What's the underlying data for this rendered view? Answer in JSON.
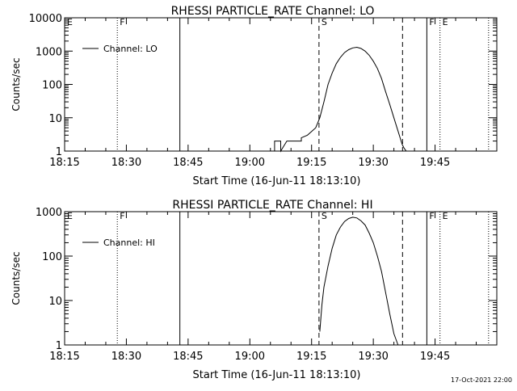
{
  "chart_data": [
    {
      "type": "line",
      "title": "RHESSI PARTICLE_RATE Channel: LO",
      "xlabel": "Start Time (16-Jun-11 18:13:10)",
      "ylabel": "Counts/sec",
      "yscale": "log",
      "xlim": [
        0,
        105
      ],
      "ylim": [
        1,
        10000
      ],
      "x_tick_labels": [
        "18:15",
        "18:30",
        "18:45",
        "19:00",
        "19:15",
        "19:30",
        "19:45"
      ],
      "x_tick_minutes": [
        0,
        15,
        30,
        45,
        60,
        75,
        90
      ],
      "y_tick_labels": [
        "1",
        "10",
        "100",
        "1000",
        "10000"
      ],
      "y_tick_values": [
        1,
        10,
        100,
        1000,
        10000
      ],
      "legend": {
        "label": "Channel: LO",
        "placement": "top-left"
      },
      "markers": [
        {
          "minute": 0,
          "style": "none",
          "label": "E"
        },
        {
          "minute": 12.8,
          "style": "dotted",
          "label": "F"
        },
        {
          "minute": 28,
          "style": "solid",
          "label": ""
        },
        {
          "minute": 61.8,
          "style": "dashed",
          "label": "S"
        },
        {
          "minute": 82.1,
          "style": "dashed",
          "label": ""
        },
        {
          "minute": 88,
          "style": "solid",
          "label": "F"
        },
        {
          "minute": 91.2,
          "style": "dotted",
          "label": "E"
        },
        {
          "minute": 103,
          "style": "dotted",
          "label": ""
        }
      ],
      "series": [
        {
          "x": [
            51,
            51,
            52.5,
            52.5,
            54,
            56,
            57.5,
            57.5,
            59,
            61,
            62,
            63,
            64,
            65,
            66,
            67,
            68,
            69,
            70,
            71,
            72,
            73,
            74,
            75,
            76,
            77,
            78,
            79,
            80,
            81,
            82,
            82.5,
            83
          ],
          "y": [
            1,
            2,
            2,
            1,
            2,
            2,
            2,
            2.5,
            3,
            5,
            10,
            30,
            100,
            220,
            420,
            650,
            900,
            1100,
            1250,
            1300,
            1200,
            1000,
            750,
            500,
            300,
            150,
            60,
            25,
            10,
            4,
            1.6,
            1.2,
            1
          ]
        }
      ]
    },
    {
      "type": "line",
      "title": "RHESSI PARTICLE_RATE Channel: HI",
      "xlabel": "Start Time (16-Jun-11 18:13:10)",
      "ylabel": "Counts/sec",
      "yscale": "log",
      "xlim": [
        0,
        105
      ],
      "ylim": [
        1,
        1000
      ],
      "x_tick_labels": [
        "18:15",
        "18:30",
        "18:45",
        "19:00",
        "19:15",
        "19:30",
        "19:45"
      ],
      "x_tick_minutes": [
        0,
        15,
        30,
        45,
        60,
        75,
        90
      ],
      "y_tick_labels": [
        "1",
        "10",
        "100",
        "1000"
      ],
      "y_tick_values": [
        1,
        10,
        100,
        1000
      ],
      "legend": {
        "label": "Channel: HI",
        "placement": "top-left"
      },
      "markers": [
        {
          "minute": 0,
          "style": "none",
          "label": "E"
        },
        {
          "minute": 12.8,
          "style": "dotted",
          "label": "F"
        },
        {
          "minute": 28,
          "style": "solid",
          "label": ""
        },
        {
          "minute": 61.8,
          "style": "dashed",
          "label": "S"
        },
        {
          "minute": 82.1,
          "style": "dashed",
          "label": ""
        },
        {
          "minute": 88,
          "style": "solid",
          "label": "F"
        },
        {
          "minute": 91.2,
          "style": "dotted",
          "label": "E"
        },
        {
          "minute": 103,
          "style": "dotted",
          "label": ""
        }
      ],
      "series": [
        {
          "x": [
            62,
            62.5,
            63,
            64,
            65,
            66,
            67,
            68,
            69,
            70,
            71,
            72,
            73,
            74,
            75,
            76,
            77,
            78,
            79,
            80,
            81
          ],
          "y": [
            2,
            8,
            20,
            60,
            150,
            300,
            450,
            600,
            700,
            750,
            720,
            620,
            500,
            330,
            200,
            100,
            45,
            15,
            5,
            1.8,
            1
          ]
        }
      ]
    }
  ],
  "footer": {
    "timestamp": "17-Oct-2021 22:00"
  }
}
